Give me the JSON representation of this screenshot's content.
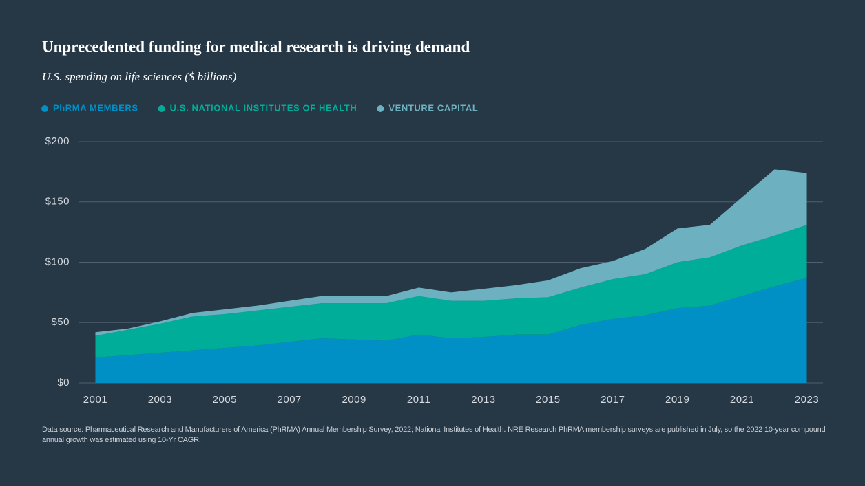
{
  "chart_data": {
    "type": "stacked-area",
    "title": "Unprecedented funding for medical research is driving demand",
    "subtitle": "U.S. spending on life sciences ($ billions)",
    "x": [
      2001,
      2002,
      2003,
      2004,
      2005,
      2006,
      2007,
      2008,
      2009,
      2010,
      2011,
      2012,
      2013,
      2014,
      2015,
      2016,
      2017,
      2018,
      2019,
      2020,
      2021,
      2022,
      2023
    ],
    "series": [
      {
        "name": "PhRMA MEMBERS",
        "color": "#0090c6",
        "values": [
          21,
          23,
          25,
          27,
          29,
          31,
          34,
          37,
          36,
          35,
          40,
          37,
          38,
          40,
          40,
          48,
          53,
          56,
          62,
          64,
          72,
          80,
          87
        ]
      },
      {
        "name": "U.S. NATIONAL INSTITUTES OF HEALTH",
        "color": "#00ad98",
        "values": [
          18,
          21,
          24,
          28,
          28,
          29,
          29,
          29,
          30,
          31,
          32,
          31,
          30,
          30,
          31,
          31,
          33,
          34,
          38,
          40,
          42,
          42,
          44
        ]
      },
      {
        "name": "VENTURE CAPITAL",
        "color": "#6db1c1",
        "values": [
          3,
          1,
          2,
          3,
          4,
          4,
          5,
          6,
          6,
          6,
          7,
          7,
          10,
          11,
          14,
          16,
          15,
          21,
          28,
          27,
          40,
          55,
          43
        ]
      }
    ],
    "xlim": [
      2000.5,
      2023.5
    ],
    "xticks": [
      2001,
      2003,
      2005,
      2007,
      2009,
      2011,
      2013,
      2015,
      2017,
      2019,
      2021,
      2023
    ],
    "ylim": [
      0,
      200
    ],
    "yticks": [
      {
        "value": 0,
        "label": "$0"
      },
      {
        "value": 50,
        "label": "$50"
      },
      {
        "value": 100,
        "label": "$100"
      },
      {
        "value": 150,
        "label": "$150"
      },
      {
        "value": 200,
        "label": "$200"
      }
    ],
    "grid": true,
    "source": "Data source: Pharmaceutical Research and Manufacturers of America (PhRMA) Annual Membership Survey, 2022; National Institutes of Health. NRE Research PhRMA membership surveys are published in July, so the 2022 10-year compound annual growth was estimated using 10-Yr CAGR."
  }
}
